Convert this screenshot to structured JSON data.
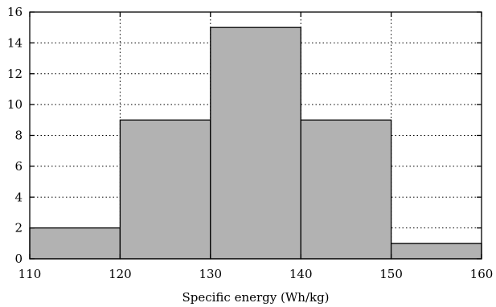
{
  "chart_data": {
    "type": "bar",
    "title": "",
    "xlabel": "Specific energy (Wh/kg)",
    "ylabel": "",
    "xlim": [
      110,
      160
    ],
    "ylim": [
      0,
      16
    ],
    "xticks": [
      110,
      120,
      130,
      140,
      150,
      160
    ],
    "yticks": [
      0,
      2,
      4,
      6,
      8,
      10,
      12,
      14,
      16
    ],
    "bins": [
      {
        "start": 110,
        "end": 120,
        "count": 2
      },
      {
        "start": 120,
        "end": 130,
        "count": 9
      },
      {
        "start": 130,
        "end": 140,
        "count": 15
      },
      {
        "start": 140,
        "end": 150,
        "count": 9
      },
      {
        "start": 150,
        "end": 160,
        "count": 1
      }
    ],
    "grid": true,
    "bar_color": "#b2b2b2"
  }
}
